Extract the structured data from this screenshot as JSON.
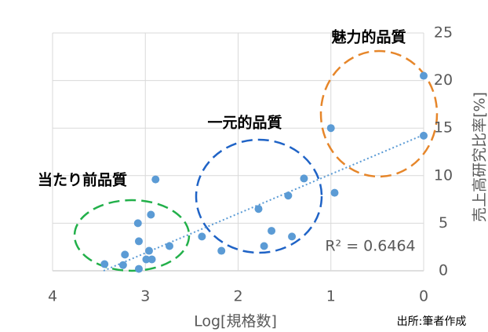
{
  "chart_data": {
    "type": "scatter",
    "x_label": "Log[規格数]",
    "y_label": "売上高研究比率[%]",
    "annotations": [
      "魅力的品質",
      "一元的品質",
      "当たり前品質"
    ],
    "r_squared_label": "R² = 0.6464",
    "source": "出所:筆者作成",
    "color": "#5b9bd5",
    "x": [
      0,
      0,
      1.0,
      0.96,
      1.29,
      1.46,
      1.42,
      1.64,
      1.72,
      1.78,
      2.18,
      2.39,
      2.74,
      2.89,
      2.94,
      3.08,
      3.07,
      2.96,
      2.99,
      2.93,
      3.22,
      3.24,
      3.07,
      3.44
    ],
    "values": [
      20.5,
      14.2,
      15.0,
      8.2,
      9.7,
      7.9,
      3.6,
      4.2,
      2.6,
      6.5,
      2.1,
      3.6,
      2.6,
      9.6,
      5.9,
      5.0,
      3.1,
      2.1,
      1.2,
      1.2,
      1.7,
      0.6,
      0.2,
      0.7
    ],
    "trendline": {
      "x": [
        3.45,
        0
      ],
      "y": [
        0,
        14.3
      ]
    },
    "xlim": [
      4,
      0
    ],
    "xticks": [
      4,
      3,
      2,
      1,
      0
    ],
    "ylim": [
      0,
      25
    ],
    "yticks": [
      0,
      5,
      10,
      15,
      20,
      25
    ],
    "grid": true
  }
}
